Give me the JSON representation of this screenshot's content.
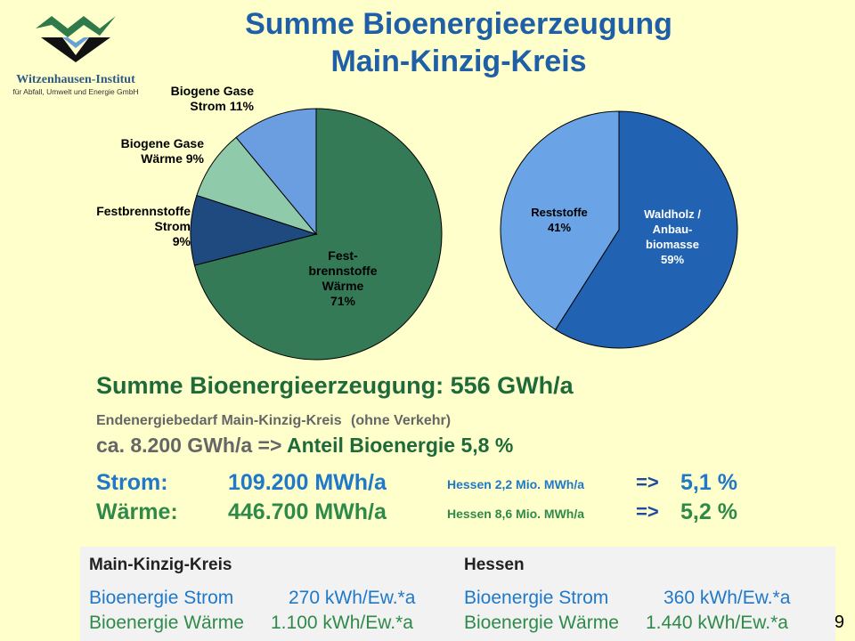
{
  "title": {
    "line1": "Summe Bioenergieerzeugung",
    "line2": "Main-Kinzig-Kreis"
  },
  "logo": {
    "name": "Witzenhausen-Institut",
    "subtitle": "für Abfall, Umwelt und Energie GmbH"
  },
  "chart_data": [
    {
      "type": "pie",
      "slices": [
        {
          "label": "Fest- brennstoffe Wärme",
          "value": 71,
          "color": "#357a56"
        },
        {
          "label": "Festbrennstoffe Strom",
          "value": 9,
          "color": "#1e4a80"
        },
        {
          "label": "Biogene Gase Wärme",
          "value": 9,
          "color": "#8fcbaa"
        },
        {
          "label": "Biogene Gase Strom",
          "value": 11,
          "color": "#6a9ee0"
        }
      ],
      "labels": {
        "festw_a": "Fest-",
        "festw_b": "brennstoffe",
        "festw_c": "Wärme",
        "festw_d": "71%",
        "fests_a": "Festbrennstoffe",
        "fests_b": "Strom",
        "fests_c": "9%",
        "biogw_a": "Biogene Gase",
        "biogw_b": "Wärme  9%",
        "biogs_a": "Biogene Gase",
        "biogs_b": "Strom 11%"
      }
    },
    {
      "type": "pie",
      "slices": [
        {
          "label": "Waldholz / Anbau- biomasse",
          "value": 59,
          "color": "#2163b2"
        },
        {
          "label": "Reststoffe",
          "value": 41,
          "color": "#6aa3e6"
        }
      ],
      "labels": {
        "wald_a": "Waldholz /",
        "wald_b": "Anbau-",
        "wald_c": "biomasse",
        "wald_d": "59%",
        "rest_a": "Reststoffe",
        "rest_b": "41%"
      }
    }
  ],
  "summary": {
    "total": "Summe Bioenergieerzeugung: 556 GWh/a",
    "need_label": "Endenergiebedarf Main-Kinzig-Kreis",
    "need_note": "(ohne Verkehr)",
    "need_value": "ca. 8.200 GWh/a =>",
    "share": "Anteil Bioenergie 5,8 %"
  },
  "energy": {
    "strom": {
      "label": "Strom:",
      "value": "109.200 MWh/a",
      "hessen": "Hessen 2,2 Mio. MWh/a",
      "arrow": "=>",
      "pct": "5,1 %"
    },
    "waerme": {
      "label": "Wärme:",
      "value": "446.700 MWh/a",
      "hessen": "Hessen 8,6 Mio. MWh/a",
      "arrow": "=>",
      "pct": "5,2 %"
    }
  },
  "comparison": {
    "left": {
      "heading": "Main-Kinzig-Kreis",
      "strom_label": "Bioenergie Strom",
      "strom_value": "270 kWh/Ew.*a",
      "waerme_label": "Bioenergie Wärme",
      "waerme_value": "1.100 kWh/Ew.*a"
    },
    "right": {
      "heading": "Hessen",
      "strom_label": "Bioenergie Strom",
      "strom_value": "360 kWh/Ew.*a",
      "waerme_label": "Bioenergie Wärme",
      "waerme_value": "1.440 kWh/Ew.*a"
    }
  },
  "page_number": "9"
}
